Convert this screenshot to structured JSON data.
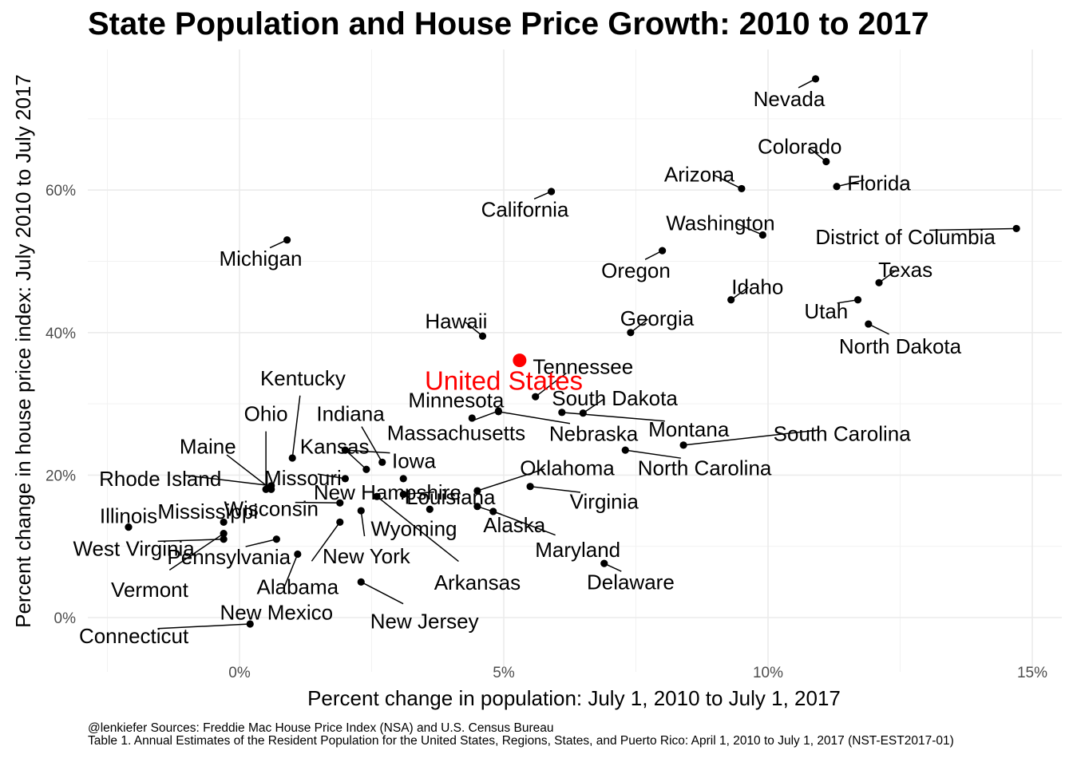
{
  "chart_data": {
    "type": "scatter",
    "title": "State Population and House Price Growth: 2010 to 2017",
    "xlabel": "Percent change in population: July 1, 2010 to July 1, 2017",
    "ylabel": "Percent change in house price index: July 2010 to July 2017",
    "xlim": [
      -2.9,
      15.5
    ],
    "ylim": [
      -7,
      79
    ],
    "x_ticks": [
      {
        "value": 0,
        "label": "0%"
      },
      {
        "value": 5,
        "label": "5%"
      },
      {
        "value": 10,
        "label": "10%"
      },
      {
        "value": 15,
        "label": "15%"
      }
    ],
    "y_ticks": [
      {
        "value": 0,
        "label": "0%"
      },
      {
        "value": 20,
        "label": "20%"
      },
      {
        "value": 40,
        "label": "40%"
      },
      {
        "value": 60,
        "label": "60%"
      }
    ],
    "grid": true,
    "highlight_color": "#ff0000",
    "point_color": "#000000",
    "points": [
      {
        "name": "Nevada",
        "x": 10.9,
        "y": 75.6,
        "lx": 10.4,
        "ly": 72.8
      },
      {
        "name": "Colorado",
        "x": 11.1,
        "y": 64.0,
        "lx": 10.6,
        "ly": 66.1
      },
      {
        "name": "Arizona",
        "x": 9.5,
        "y": 60.2,
        "lx": 8.7,
        "ly": 62.2
      },
      {
        "name": "Florida",
        "x": 11.3,
        "y": 60.5,
        "lx": 12.1,
        "ly": 61.0
      },
      {
        "name": "California",
        "x": 5.9,
        "y": 59.8,
        "lx": 5.4,
        "ly": 57.3
      },
      {
        "name": "Washington",
        "x": 9.9,
        "y": 53.7,
        "lx": 9.1,
        "ly": 55.4
      },
      {
        "name": "District of Columbia",
        "x": 14.7,
        "y": 54.6,
        "lx": 12.6,
        "ly": 53.4
      },
      {
        "name": "Michigan",
        "x": 0.9,
        "y": 53.0,
        "lx": 0.4,
        "ly": 50.4
      },
      {
        "name": "Oregon",
        "x": 8.0,
        "y": 51.5,
        "lx": 7.5,
        "ly": 48.7
      },
      {
        "name": "Texas",
        "x": 12.1,
        "y": 47.0,
        "lx": 12.6,
        "ly": 48.8
      },
      {
        "name": "Idaho",
        "x": 9.3,
        "y": 44.6,
        "lx": 9.8,
        "ly": 46.4
      },
      {
        "name": "Utah",
        "x": 11.7,
        "y": 44.6,
        "lx": 11.1,
        "ly": 43.0
      },
      {
        "name": "Hawaii",
        "x": 4.6,
        "y": 39.5,
        "lx": 4.1,
        "ly": 41.6
      },
      {
        "name": "Georgia",
        "x": 7.4,
        "y": 40.0,
        "lx": 7.9,
        "ly": 42.0
      },
      {
        "name": "North Dakota",
        "x": 11.9,
        "y": 41.2,
        "lx": 12.5,
        "ly": 38.1
      },
      {
        "name": "Tennessee",
        "x": 5.6,
        "y": 31.0,
        "lx": 6.5,
        "ly": 35.2
      },
      {
        "name": "Minnesota",
        "x": 4.4,
        "y": 28.0,
        "lx": 4.1,
        "ly": 30.5
      },
      {
        "name": "South Dakota",
        "x": 6.5,
        "y": 28.7,
        "lx": 7.1,
        "ly": 30.8
      },
      {
        "name": "Nebraska",
        "x": 4.9,
        "y": 28.9,
        "lx": 6.7,
        "ly": 25.8
      },
      {
        "name": "Montana",
        "x": 6.1,
        "y": 28.8,
        "lx": 8.5,
        "ly": 26.4
      },
      {
        "name": "South Carolina",
        "x": 8.4,
        "y": 24.2,
        "lx": 11.4,
        "ly": 25.8
      },
      {
        "name": "Massachusetts",
        "x": 4.9,
        "y": 29.0,
        "lx": 4.1,
        "ly": 25.9
      },
      {
        "name": "North Carolina",
        "x": 7.3,
        "y": 23.5,
        "lx": 8.8,
        "ly": 21.0
      },
      {
        "name": "Kentucky",
        "x": 1.0,
        "y": 22.4,
        "lx": 1.2,
        "ly": 33.6
      },
      {
        "name": "Indiana",
        "x": 2.7,
        "y": 21.8,
        "lx": 2.1,
        "ly": 28.6
      },
      {
        "name": "Ohio",
        "x": 0.5,
        "y": 18.0,
        "lx": 0.5,
        "ly": 28.6
      },
      {
        "name": "Kansas",
        "x": 2.4,
        "y": 20.8,
        "lx": 1.8,
        "ly": 24.0
      },
      {
        "name": "Iowa",
        "x": 2.0,
        "y": 23.5,
        "lx": 3.3,
        "ly": 22.0
      },
      {
        "name": "Maine",
        "x": 0.6,
        "y": 18.0,
        "lx": -0.6,
        "ly": 24.0
      },
      {
        "name": "Missouri",
        "x": 2.0,
        "y": 19.5,
        "lx": 1.2,
        "ly": 19.6
      },
      {
        "name": "Oklahoma",
        "x": 4.5,
        "y": 17.8,
        "lx": 6.2,
        "ly": 21.0
      },
      {
        "name": "Rhode Island",
        "x": 0.6,
        "y": 18.5,
        "lx": -1.5,
        "ly": 19.5
      },
      {
        "name": "New Hampshire",
        "x": 3.1,
        "y": 19.5,
        "lx": 2.8,
        "ly": 17.6
      },
      {
        "name": "Louisiana",
        "x": 3.1,
        "y": 17.3,
        "lx": 4.0,
        "ly": 16.9
      },
      {
        "name": "Virginia",
        "x": 5.5,
        "y": 18.4,
        "lx": 6.9,
        "ly": 16.3
      },
      {
        "name": "Wisconsin",
        "x": 1.9,
        "y": 16.1,
        "lx": 0.6,
        "ly": 15.3
      },
      {
        "name": "Mississippi",
        "x": -0.3,
        "y": 13.4,
        "lx": -0.6,
        "ly": 14.9
      },
      {
        "name": "Illinois",
        "x": -2.1,
        "y": 12.7,
        "lx": -2.1,
        "ly": 14.3
      },
      {
        "name": "Wyoming",
        "x": 3.6,
        "y": 15.2,
        "lx": 3.3,
        "ly": 12.5
      },
      {
        "name": "Alaska",
        "x": 4.5,
        "y": 15.6,
        "lx": 5.2,
        "ly": 13.0
      },
      {
        "name": "Maryland",
        "x": 4.8,
        "y": 14.9,
        "lx": 6.4,
        "ly": 9.5
      },
      {
        "name": "West Virginia",
        "x": -0.3,
        "y": 11.0,
        "lx": -2.0,
        "ly": 9.7
      },
      {
        "name": "Pennsylvania",
        "x": 0.7,
        "y": 11.0,
        "lx": -0.2,
        "ly": 8.5
      },
      {
        "name": "New York",
        "x": 2.3,
        "y": 15.0,
        "lx": 2.4,
        "ly": 8.6
      },
      {
        "name": "Arkansas",
        "x": 2.6,
        "y": 17.0,
        "lx": 4.5,
        "ly": 4.9
      },
      {
        "name": "Delaware",
        "x": 6.9,
        "y": 7.6,
        "lx": 7.4,
        "ly": 5.0
      },
      {
        "name": "Vermont",
        "x": -0.3,
        "y": 11.8,
        "lx": -1.7,
        "ly": 3.9
      },
      {
        "name": "Alabama",
        "x": 1.9,
        "y": 13.4,
        "lx": 1.1,
        "ly": 4.3
      },
      {
        "name": "New Mexico",
        "x": 1.1,
        "y": 8.9,
        "lx": 0.7,
        "ly": 0.7
      },
      {
        "name": "New Jersey",
        "x": 2.3,
        "y": 5.0,
        "lx": 3.5,
        "ly": -0.5
      },
      {
        "name": "Connecticut",
        "x": 0.2,
        "y": -0.9,
        "lx": -2.0,
        "ly": -2.6
      }
    ],
    "highlight": {
      "name": "United States",
      "x": 5.3,
      "y": 36.1,
      "lx": 5.0,
      "ly": 33.2
    }
  },
  "caption_line1": "@lenkiefer Sources: Freddie Mac House Price Index (NSA) and U.S. Census Bureau",
  "caption_line2": "Table 1. Annual Estimates of the Resident Population for the United States, Regions, States, and Puerto Rico: April 1, 2010 to July 1, 2017 (NST-EST2017-01)"
}
